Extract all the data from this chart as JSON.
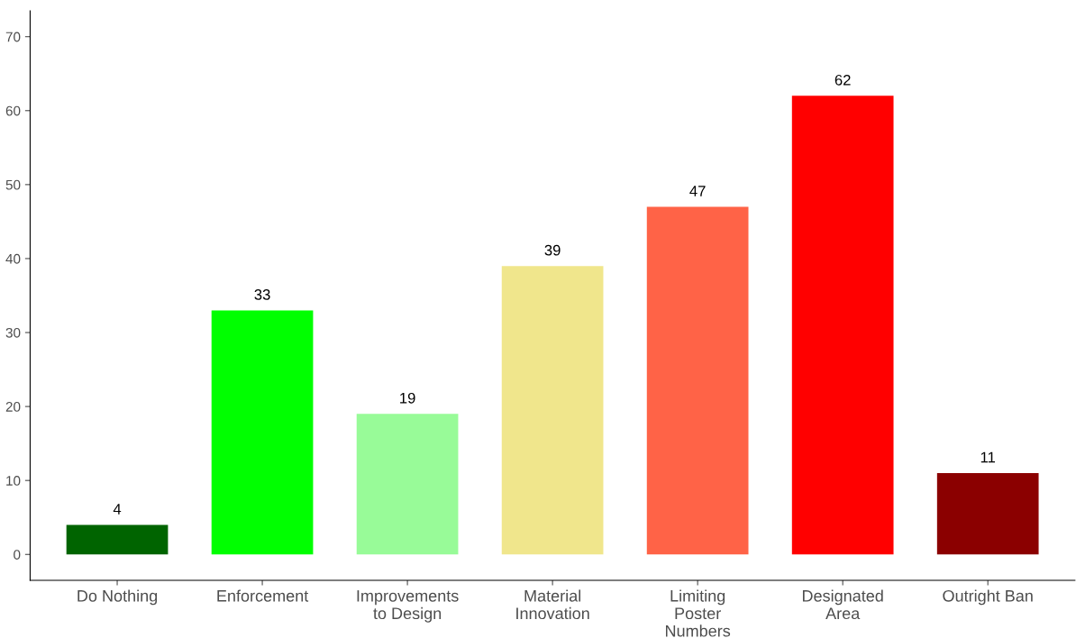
{
  "chart_data": {
    "type": "bar",
    "categories": [
      "Do Nothing",
      "Enforcement",
      "Improvements\nto Design",
      "Material\nInnovation",
      "Limiting\nPoster\nNumbers",
      "Designated\nArea",
      "Outright Ban"
    ],
    "values": [
      4,
      33,
      19,
      39,
      47,
      62,
      11
    ],
    "colors": [
      "#006400",
      "#00ff00",
      "#98fb98",
      "#f0e68c",
      "#ff6347",
      "#ff0000",
      "#8b0000"
    ],
    "ylim": [
      -3.5,
      73.5
    ],
    "yticks": [
      0,
      10,
      20,
      30,
      40,
      50,
      60,
      70
    ],
    "data_labels": true,
    "grid": false,
    "legend": false
  }
}
